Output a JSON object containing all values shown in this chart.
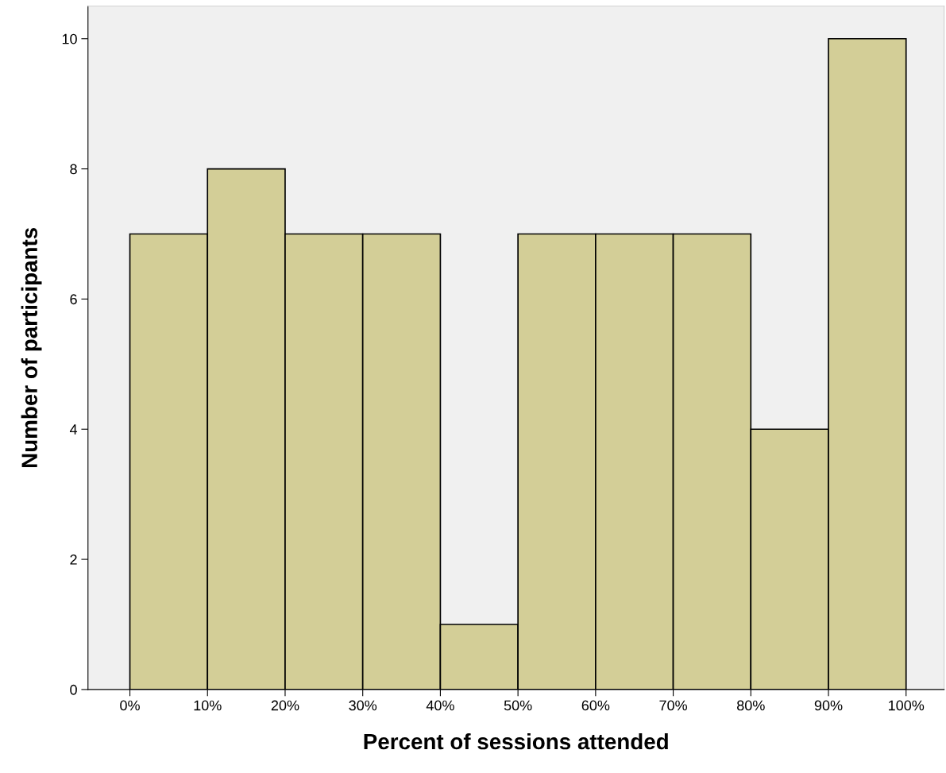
{
  "chart_data": {
    "type": "histogram",
    "xlabel": "Percent of sessions attended",
    "ylabel": "Number of participants",
    "bins": [
      0,
      10,
      20,
      30,
      40,
      50,
      60,
      70,
      80,
      90,
      100
    ],
    "values": [
      7,
      8,
      7,
      7,
      1,
      7,
      7,
      7,
      4,
      10
    ],
    "color": "#d3ce97",
    "xlim": [
      -5.4,
      104.9
    ],
    "ylim": [
      0,
      10.5
    ],
    "xticks": [
      {
        "value": 0,
        "label": "0%"
      },
      {
        "value": 10,
        "label": "10%"
      },
      {
        "value": 20,
        "label": "20%"
      },
      {
        "value": 30,
        "label": "30%"
      },
      {
        "value": 40,
        "label": "40%"
      },
      {
        "value": 50,
        "label": "50%"
      },
      {
        "value": 60,
        "label": "60%"
      },
      {
        "value": 70,
        "label": "70%"
      },
      {
        "value": 80,
        "label": "80%"
      },
      {
        "value": 90,
        "label": "90%"
      },
      {
        "value": 100,
        "label": "100%"
      }
    ],
    "yticks": [
      0,
      2,
      4,
      6,
      8,
      10
    ],
    "grid": false,
    "legend": false
  }
}
